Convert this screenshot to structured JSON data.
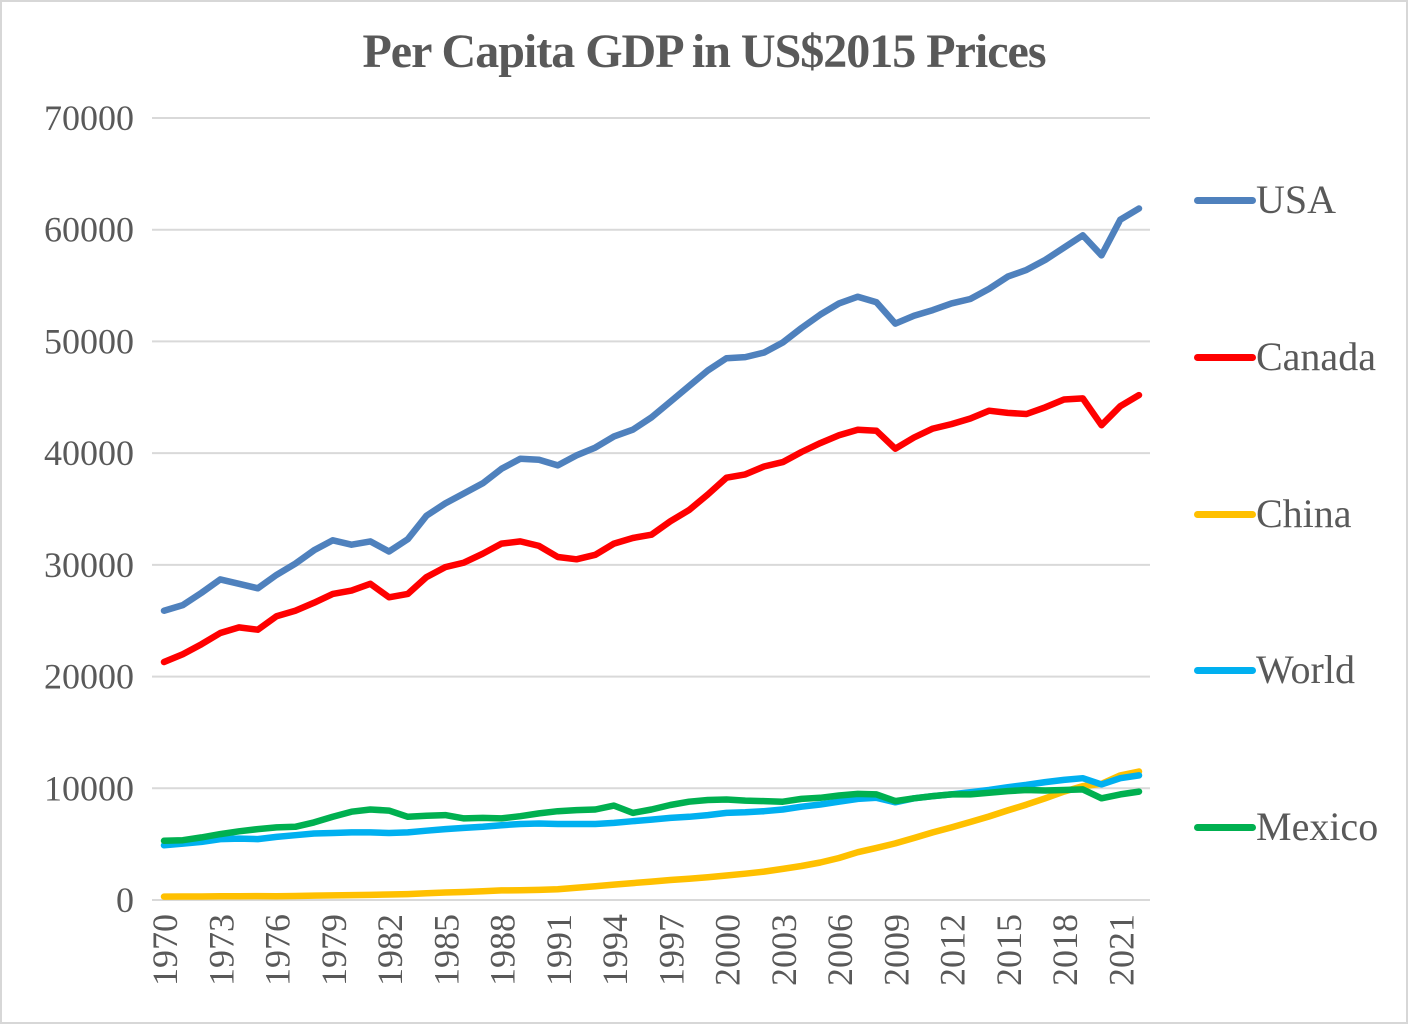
{
  "title": "Per Capita GDP in US$2015 Prices",
  "colors": {
    "text": "#595959",
    "gridline": "#d9d9d9",
    "background": "#ffffff",
    "border": "#d7d7d7"
  },
  "chart_data": {
    "type": "line",
    "title": "Per Capita GDP in US$2015 Prices",
    "xlabel": "",
    "ylabel": "",
    "grid": "horizontal",
    "legend_position": "right",
    "x_start": 1970,
    "x_end": 2022,
    "x_tick_years": [
      1970,
      1973,
      1976,
      1979,
      1982,
      1985,
      1988,
      1991,
      1994,
      1997,
      2000,
      2003,
      2006,
      2009,
      2012,
      2015,
      2018,
      2021
    ],
    "y_ticks": [
      0,
      10000,
      20000,
      30000,
      40000,
      50000,
      60000,
      70000
    ],
    "ylim": [
      0,
      70000
    ],
    "series": [
      {
        "name": "USA",
        "color": "#4f81bd",
        "values": [
          25900,
          26400,
          27500,
          28700,
          28300,
          27900,
          29100,
          30100,
          31300,
          32200,
          31800,
          32100,
          31200,
          32300,
          34400,
          35500,
          36400,
          37300,
          38600,
          39500,
          39400,
          38900,
          39800,
          40500,
          41500,
          42100,
          43200,
          44600,
          46000,
          47400,
          48500,
          48600,
          49000,
          49900,
          51200,
          52400,
          53400,
          54000,
          53500,
          51600,
          52300,
          52800,
          53400,
          53800,
          54700,
          55800,
          56400,
          57300,
          58400,
          59500,
          57700,
          60900,
          61900
        ]
      },
      {
        "name": "Canada",
        "color": "#ff0000",
        "values": [
          21300,
          22000,
          22900,
          23900,
          24400,
          24200,
          25400,
          25900,
          26600,
          27400,
          27700,
          28300,
          27100,
          27400,
          28900,
          29800,
          30200,
          31000,
          31900,
          32100,
          31700,
          30700,
          30500,
          30900,
          31900,
          32400,
          32700,
          33900,
          34900,
          36300,
          37800,
          38100,
          38800,
          39200,
          40100,
          40900,
          41600,
          42100,
          42000,
          40400,
          41400,
          42200,
          42600,
          43100,
          43800,
          43600,
          43500,
          44100,
          44800,
          44900,
          42500,
          44200,
          45200
        ]
      },
      {
        "name": "China",
        "color": "#ffc000",
        "values": [
          300,
          310,
          310,
          330,
          330,
          350,
          340,
          360,
          390,
          410,
          440,
          460,
          490,
          530,
          600,
          670,
          720,
          790,
          860,
          880,
          900,
          970,
          1090,
          1230,
          1380,
          1510,
          1650,
          1790,
          1910,
          2040,
          2190,
          2350,
          2540,
          2780,
          3040,
          3360,
          3760,
          4280,
          4660,
          5070,
          5550,
          6050,
          6500,
          6980,
          7470,
          8020,
          8540,
          9100,
          9700,
          10200,
          10400,
          11150,
          11500
        ]
      },
      {
        "name": "World",
        "color": "#00b0f0",
        "values": [
          4900,
          5050,
          5200,
          5450,
          5500,
          5450,
          5650,
          5800,
          5950,
          6000,
          6050,
          6050,
          6000,
          6050,
          6200,
          6350,
          6450,
          6550,
          6700,
          6800,
          6850,
          6800,
          6800,
          6800,
          6900,
          7050,
          7200,
          7350,
          7450,
          7600,
          7800,
          7850,
          7950,
          8100,
          8350,
          8550,
          8800,
          9050,
          9150,
          8750,
          9100,
          9300,
          9450,
          9650,
          9850,
          10100,
          10300,
          10550,
          10750,
          10900,
          10350,
          10900,
          11150
        ]
      },
      {
        "name": "Mexico",
        "color": "#00b050",
        "values": [
          5300,
          5350,
          5600,
          5900,
          6150,
          6350,
          6500,
          6550,
          6950,
          7450,
          7900,
          8100,
          8000,
          7450,
          7550,
          7600,
          7300,
          7350,
          7300,
          7500,
          7750,
          7950,
          8050,
          8100,
          8450,
          7800,
          8100,
          8500,
          8800,
          8950,
          9000,
          8900,
          8850,
          8800,
          9050,
          9150,
          9350,
          9500,
          9450,
          8850,
          9100,
          9300,
          9450,
          9450,
          9600,
          9750,
          9850,
          9800,
          9850,
          9900,
          9100,
          9450,
          9700
        ]
      }
    ]
  },
  "legend": {
    "items": [
      "USA",
      "Canada",
      "China",
      "World",
      "Mexico"
    ]
  }
}
